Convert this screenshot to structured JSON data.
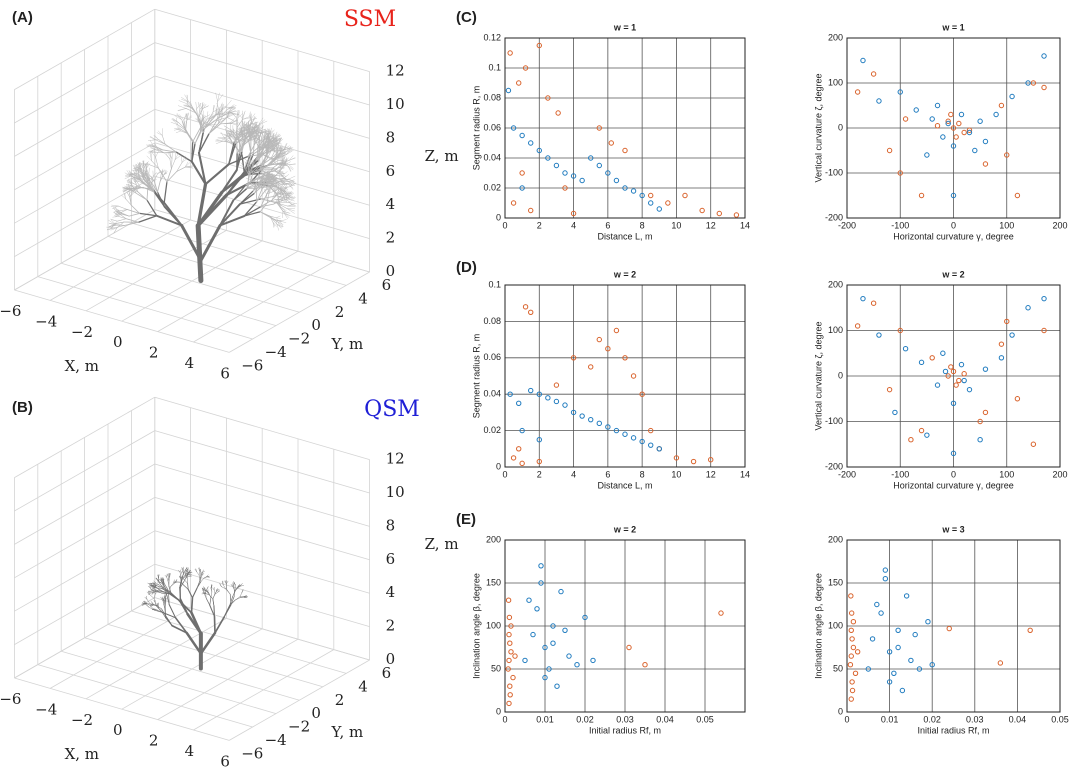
{
  "chart_data": [
    {
      "type": "tree3d",
      "panel": "(A)",
      "annotation": "SSM",
      "annotation_color": "#e8231b",
      "xlabel": "X, m",
      "ylabel": "Y, m",
      "zlabel": "Z, m",
      "xlim": [
        -6,
        6
      ],
      "ylim": [
        -6,
        6
      ],
      "zlim": [
        0,
        12
      ],
      "xticks": [
        {
          "value": -6,
          "label": "−6"
        },
        {
          "value": -4,
          "label": "−4"
        },
        {
          "value": -2,
          "label": "−2"
        },
        0,
        2,
        4,
        6
      ],
      "yticks": [
        {
          "value": -6,
          "label": "−6"
        },
        {
          "value": -4,
          "label": "−4"
        },
        {
          "value": -2,
          "label": "−2"
        },
        0,
        2,
        4,
        6
      ],
      "zticks": [
        0,
        2,
        4,
        6,
        8,
        10,
        12
      ],
      "grid": true
    },
    {
      "type": "tree3d",
      "panel": "(B)",
      "annotation": "QSM",
      "annotation_color": "#1f1fd6",
      "xlabel": "X, m",
      "ylabel": "Y, m",
      "zlabel": "Z, m",
      "xlim": [
        -6,
        6
      ],
      "ylim": [
        -6,
        6
      ],
      "zlim": [
        0,
        12
      ],
      "xticks": [
        {
          "value": -6,
          "label": "−6"
        },
        {
          "value": -4,
          "label": "−4"
        },
        {
          "value": -2,
          "label": "−2"
        },
        0,
        2,
        4,
        6
      ],
      "yticks": [
        {
          "value": -6,
          "label": "−6"
        },
        {
          "value": -4,
          "label": "−4"
        },
        {
          "value": -2,
          "label": "−2"
        },
        0,
        2,
        4,
        6
      ],
      "zticks": [
        0,
        2,
        4,
        6,
        8,
        10,
        12
      ],
      "grid": true
    },
    {
      "type": "scatter",
      "panel": "(C)",
      "title": "w = 1",
      "xlabel": "Distance L, m",
      "ylabel": "Segment radius R, m",
      "xlim": [
        0,
        14
      ],
      "ylim": [
        0,
        0.12
      ],
      "xticks": [
        0,
        2,
        4,
        6,
        8,
        10,
        12,
        14
      ],
      "yticks": [
        0,
        0.02,
        0.04,
        0.06,
        0.08,
        0.1,
        0.12
      ],
      "grid": true,
      "series": [
        {
          "color": "#d9622b",
          "x": [
            0.3,
            0.8,
            1.2,
            2.0,
            2.5,
            3.1,
            0.5,
            1.5,
            4.0,
            5.5,
            6.2,
            7.0,
            8.5,
            9.5,
            10.5,
            11.5,
            12.5,
            13.5,
            1.0,
            3.5
          ],
          "values": [
            0.11,
            0.09,
            0.1,
            0.115,
            0.08,
            0.07,
            0.01,
            0.005,
            0.003,
            0.06,
            0.05,
            0.045,
            0.015,
            0.01,
            0.015,
            0.005,
            0.003,
            0.002,
            0.03,
            0.02
          ]
        },
        {
          "color": "#1f7bbf",
          "x": [
            0.2,
            0.5,
            1.0,
            1.5,
            2.0,
            2.5,
            3.0,
            3.5,
            4.0,
            4.5,
            5.0,
            5.5,
            6.0,
            6.5,
            7.0,
            7.5,
            8.0,
            8.5,
            9.0,
            1.0
          ],
          "values": [
            0.085,
            0.06,
            0.055,
            0.05,
            0.045,
            0.04,
            0.035,
            0.03,
            0.028,
            0.025,
            0.04,
            0.035,
            0.03,
            0.025,
            0.02,
            0.018,
            0.015,
            0.01,
            0.006,
            0.02
          ]
        }
      ]
    },
    {
      "type": "scatter",
      "title": "w = 1",
      "xlabel": "Horizontal curvature γ, degree",
      "ylabel": "Vertical curvature ζ, degree",
      "xlim": [
        -200,
        200
      ],
      "ylim": [
        -200,
        200
      ],
      "xticks": [
        -200,
        -100,
        0,
        100,
        200
      ],
      "yticks": [
        -200,
        -100,
        0,
        100,
        200
      ],
      "grid": true,
      "series": [
        {
          "color": "#d9622b",
          "x": [
            -180,
            -150,
            -120,
            -90,
            -60,
            -30,
            0,
            10,
            30,
            60,
            90,
            120,
            150,
            170,
            -10,
            20,
            -100,
            100,
            5,
            -5
          ],
          "values": [
            80,
            120,
            -50,
            20,
            -150,
            5,
            0,
            10,
            -5,
            -80,
            50,
            -150,
            100,
            90,
            15,
            -10,
            -100,
            -60,
            -20,
            30
          ]
        },
        {
          "color": "#1f7bbf",
          "x": [
            -170,
            -140,
            -100,
            -70,
            -40,
            -20,
            -10,
            0,
            15,
            30,
            50,
            80,
            110,
            140,
            170,
            -50,
            40,
            0,
            -30,
            60
          ],
          "values": [
            150,
            60,
            80,
            40,
            20,
            -20,
            10,
            -40,
            30,
            -10,
            15,
            30,
            70,
            100,
            160,
            -60,
            -50,
            -150,
            50,
            -30
          ]
        }
      ]
    },
    {
      "type": "scatter",
      "panel": "(D)",
      "title": "w = 2",
      "xlabel": "Distance L, m",
      "ylabel": "Segment radius R, m",
      "xlim": [
        0,
        14
      ],
      "ylim": [
        0,
        0.1
      ],
      "xticks": [
        0,
        2,
        4,
        6,
        8,
        10,
        12,
        14
      ],
      "yticks": [
        0,
        0.02,
        0.04,
        0.06,
        0.08,
        0.1
      ],
      "grid": true,
      "series": [
        {
          "color": "#d9622b",
          "x": [
            0.5,
            1,
            1.5,
            2,
            3,
            4,
            5,
            5.5,
            6,
            6.5,
            7,
            7.5,
            8,
            8.5,
            9,
            10,
            11,
            12,
            1.2,
            0.8
          ],
          "values": [
            0.005,
            0.002,
            0.085,
            0.003,
            0.045,
            0.06,
            0.055,
            0.07,
            0.065,
            0.075,
            0.06,
            0.05,
            0.04,
            0.02,
            0.01,
            0.005,
            0.003,
            0.004,
            0.088,
            0.01
          ]
        },
        {
          "color": "#1f7bbf",
          "x": [
            0.3,
            0.8,
            1.5,
            2,
            2.5,
            3,
            3.5,
            4,
            4.5,
            5,
            5.5,
            6,
            6.5,
            7,
            7.5,
            8,
            8.5,
            9,
            1,
            2
          ],
          "values": [
            0.04,
            0.035,
            0.042,
            0.04,
            0.038,
            0.036,
            0.034,
            0.03,
            0.028,
            0.026,
            0.024,
            0.022,
            0.02,
            0.018,
            0.016,
            0.014,
            0.012,
            0.01,
            0.02,
            0.015
          ]
        }
      ]
    },
    {
      "type": "scatter",
      "title": "w = 2",
      "xlabel": "Horizontal curvature γ, degree",
      "ylabel": "Vertical curvature ζ, degree",
      "xlim": [
        -200,
        200
      ],
      "ylim": [
        -200,
        200
      ],
      "xticks": [
        -200,
        -100,
        0,
        100,
        200
      ],
      "yticks": [
        -200,
        -100,
        0,
        100,
        200
      ],
      "grid": true,
      "series": [
        {
          "color": "#d9622b",
          "x": [
            -180,
            -150,
            -120,
            -100,
            -80,
            -40,
            -10,
            0,
            10,
            20,
            50,
            90,
            100,
            120,
            150,
            170,
            -60,
            60,
            -5,
            5
          ],
          "values": [
            110,
            160,
            -30,
            100,
            -140,
            40,
            0,
            10,
            -10,
            5,
            -100,
            70,
            120,
            -50,
            -150,
            100,
            -120,
            -80,
            20,
            -20
          ]
        },
        {
          "color": "#1f7bbf",
          "x": [
            -170,
            -140,
            -110,
            -90,
            -60,
            -30,
            -15,
            0,
            15,
            30,
            60,
            90,
            110,
            140,
            170,
            -50,
            50,
            0,
            -20,
            20
          ],
          "values": [
            170,
            90,
            -80,
            60,
            30,
            -20,
            10,
            -60,
            25,
            -30,
            15,
            40,
            90,
            150,
            170,
            -130,
            -140,
            -170,
            50,
            -10
          ]
        }
      ]
    },
    {
      "type": "scatter",
      "panel": "(E)",
      "title": "w = 2",
      "xlabel": "Initial radius Rf, m",
      "ylabel": "Inclination angle β, degree",
      "xlim": [
        0,
        0.06
      ],
      "ylim": [
        0,
        200
      ],
      "xticks": [
        0,
        0.01,
        0.02,
        0.03,
        0.04,
        0.05
      ],
      "yticks": [
        0,
        50,
        100,
        150,
        200
      ],
      "grid": true,
      "series": [
        {
          "color": "#d9622b",
          "x": [
            0.001,
            0.0012,
            0.0008,
            0.0015,
            0.001,
            0.0011,
            0.0009,
            0.0013,
            0.001,
            0.0012,
            0.002,
            0.0015,
            0.031,
            0.054,
            0.035,
            0.0025
          ],
          "values": [
            10,
            30,
            50,
            70,
            90,
            110,
            130,
            20,
            60,
            80,
            40,
            100,
            75,
            115,
            55,
            65
          ]
        },
        {
          "color": "#1f7bbf",
          "x": [
            0.005,
            0.007,
            0.008,
            0.009,
            0.01,
            0.011,
            0.012,
            0.013,
            0.014,
            0.016,
            0.018,
            0.02,
            0.009,
            0.01,
            0.012,
            0.006,
            0.015,
            0.022
          ],
          "values": [
            60,
            90,
            120,
            150,
            75,
            50,
            100,
            30,
            140,
            65,
            55,
            110,
            170,
            40,
            80,
            130,
            95,
            60
          ]
        }
      ]
    },
    {
      "type": "scatter",
      "title": "w = 3",
      "xlabel": "Initial radius Rf, m",
      "ylabel": "Inclination angle β, degree",
      "xlim": [
        0,
        0.05
      ],
      "ylim": [
        0,
        200
      ],
      "xticks": [
        0,
        0.01,
        0.02,
        0.03,
        0.04,
        0.05
      ],
      "yticks": [
        0,
        50,
        100,
        150,
        200
      ],
      "grid": true,
      "series": [
        {
          "color": "#d9622b",
          "x": [
            0.001,
            0.0012,
            0.0008,
            0.0015,
            0.001,
            0.0011,
            0.0009,
            0.0013,
            0.001,
            0.0012,
            0.002,
            0.0015,
            0.024,
            0.036,
            0.043,
            0.0025
          ],
          "values": [
            15,
            35,
            55,
            75,
            95,
            115,
            135,
            25,
            65,
            85,
            45,
            105,
            97,
            57,
            95,
            70
          ]
        },
        {
          "color": "#1f7bbf",
          "x": [
            0.005,
            0.006,
            0.008,
            0.009,
            0.01,
            0.011,
            0.012,
            0.013,
            0.014,
            0.015,
            0.017,
            0.019,
            0.009,
            0.01,
            0.012,
            0.007,
            0.016,
            0.02
          ],
          "values": [
            50,
            85,
            115,
            155,
            70,
            45,
            95,
            25,
            135,
            60,
            50,
            105,
            165,
            35,
            75,
            125,
            90,
            55
          ]
        }
      ]
    }
  ]
}
